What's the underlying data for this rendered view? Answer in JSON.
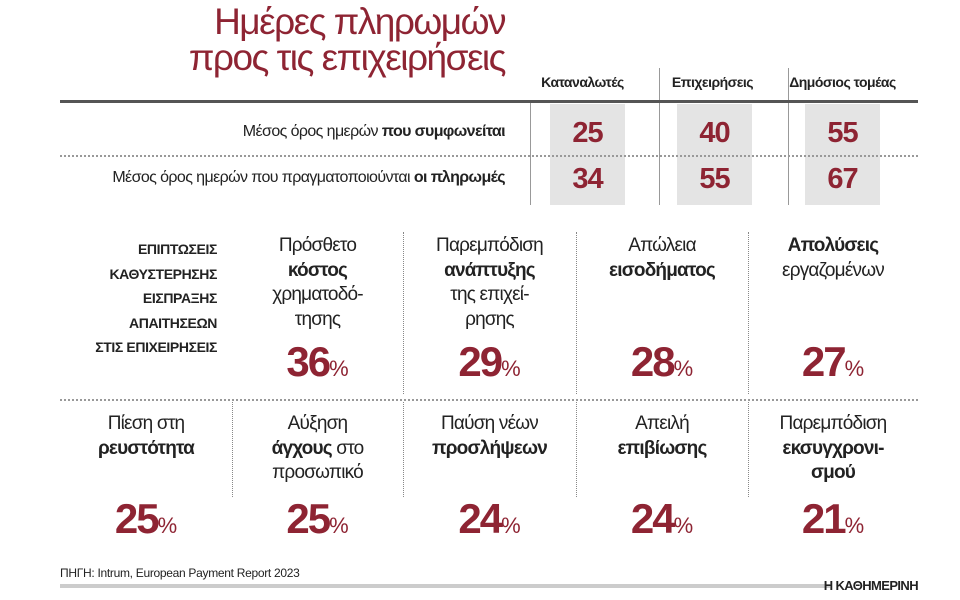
{
  "title": [
    "Ημέρες πληρωμών",
    "προς τις επιχειρήσεις"
  ],
  "chart_data": {
    "type": "table",
    "columns": [
      "Καταναλωτές",
      "Επιχειρήσεις",
      "Δημόσιος τομέας"
    ],
    "rows": [
      {
        "label": [
          {
            "t": "Μέσος όρος ημερών ",
            "b": false
          },
          {
            "t": "που συμφωνείται",
            "b": true
          }
        ],
        "values": [
          "25",
          "40",
          "55"
        ]
      },
      {
        "label": [
          {
            "t": "Μέσος όρος ημερών που πραγματοποιούνται ",
            "b": false
          },
          {
            "t": "οι πληρωμές",
            "b": true
          }
        ],
        "values": [
          "34",
          "55",
          "67"
        ]
      }
    ]
  },
  "impact_heading": [
    "ΕΠΙΠΤΩΣΕΙΣ",
    "ΚΑΘΥΣΤΕΡΗΣΗΣ",
    "ΕΙΣΠΡΑΞΗΣ",
    "ΑΠΑΙΤΗΣΕΩΝ",
    "ΣΤΙΣ ΕΠΙΧΕΙΡΗΣΕΙΣ"
  ],
  "percent_sign": "%",
  "impacts": [
    {
      "lines": [
        [
          {
            "t": "Πρόσθετο",
            "b": false
          }
        ],
        [
          {
            "t": "κόστος",
            "b": true
          }
        ],
        [
          {
            "t": "χρηματοδό-",
            "b": false
          }
        ],
        [
          {
            "t": "τησης",
            "b": false
          }
        ]
      ],
      "value": "36"
    },
    {
      "lines": [
        [
          {
            "t": "Παρεμπόδιση",
            "b": false
          }
        ],
        [
          {
            "t": "ανάπτυξης",
            "b": true
          }
        ],
        [
          {
            "t": "της επιχεί-",
            "b": false
          }
        ],
        [
          {
            "t": "ρησης",
            "b": false
          }
        ]
      ],
      "value": "29"
    },
    {
      "lines": [
        [
          {
            "t": "Απώλεια",
            "b": false
          }
        ],
        [
          {
            "t": "εισοδήματος",
            "b": true
          }
        ]
      ],
      "value": "28"
    },
    {
      "lines": [
        [
          {
            "t": "Απολύσεις",
            "b": true
          }
        ],
        [
          {
            "t": "εργαζομένων",
            "b": false
          }
        ]
      ],
      "value": "27"
    },
    {
      "lines": [
        [
          {
            "t": "Πίεση στη",
            "b": false
          }
        ],
        [
          {
            "t": "ρευστότητα",
            "b": true
          }
        ]
      ],
      "value": "25"
    },
    {
      "lines": [
        [
          {
            "t": "Αύξηση",
            "b": false
          }
        ],
        [
          {
            "t": "άγχους",
            "b": true
          },
          {
            "t": " στο",
            "b": false
          }
        ],
        [
          {
            "t": "προσωπικό",
            "b": false
          }
        ]
      ],
      "value": "25"
    },
    {
      "lines": [
        [
          {
            "t": "Παύση νέων",
            "b": false
          }
        ],
        [
          {
            "t": "προσλήψεων",
            "b": true
          }
        ]
      ],
      "value": "24"
    },
    {
      "lines": [
        [
          {
            "t": "Απειλή",
            "b": false
          }
        ],
        [
          {
            "t": "επιβίωσης",
            "b": true
          }
        ]
      ],
      "value": "24"
    },
    {
      "lines": [
        [
          {
            "t": "Παρεμπόδιση",
            "b": false
          }
        ],
        [
          {
            "t": "εκσυγχρονι-",
            "b": true
          }
        ],
        [
          {
            "t": "σμού",
            "b": true
          }
        ]
      ],
      "value": "21"
    }
  ],
  "source": "ΠΗΓΗ:  Intrum, European Payment Report 2023",
  "logo": "Η ΚΑΘΗΜΕΡΙΝΗ",
  "colors": {
    "accent": "#8e2433",
    "box": "#e4e4e4"
  }
}
